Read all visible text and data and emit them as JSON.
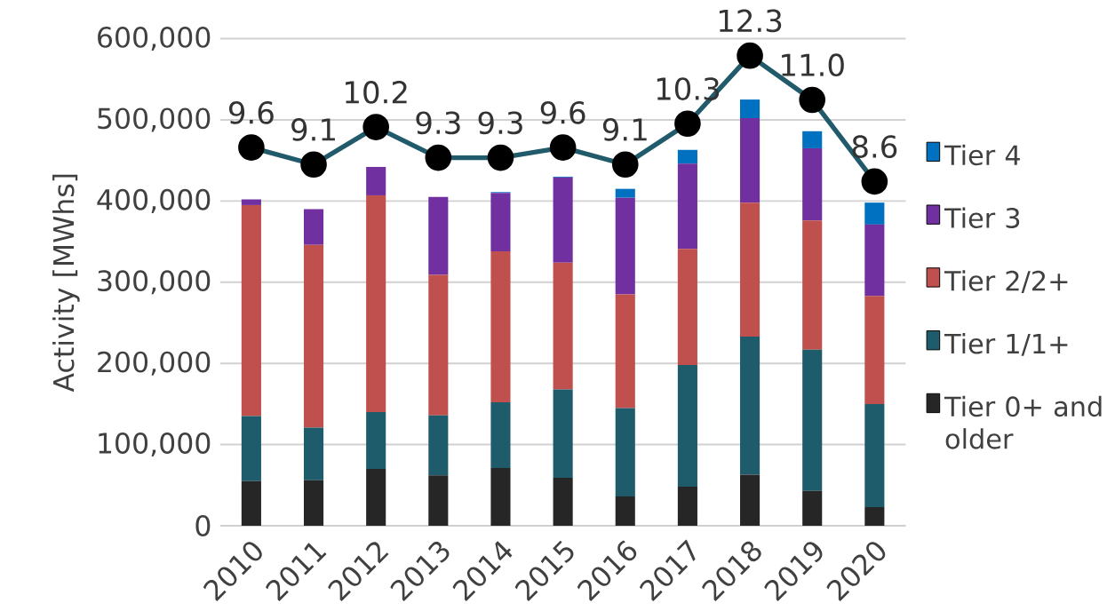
{
  "chart_data": {
    "type": "bar",
    "stacked": true,
    "ylabel": "Activity [MWhs]",
    "categories": [
      "2010",
      "2011",
      "2012",
      "2013",
      "2014",
      "2015",
      "2016",
      "2017",
      "2018",
      "2019",
      "2020"
    ],
    "ylim": [
      0,
      600000
    ],
    "yticks": [
      0,
      {
        "value": 100000,
        "label": "100,000"
      },
      {
        "value": 200000,
        "label": "200,000"
      },
      {
        "value": 300000,
        "label": "300,000"
      },
      {
        "value": 400000,
        "label": "400,000"
      },
      {
        "value": 500000,
        "label": "500,000"
      },
      {
        "value": 600000,
        "label": "600,000"
      }
    ],
    "y2lim": [
      -1.52,
      12.8
    ],
    "grid": "y",
    "legend": "right",
    "series": [
      {
        "name": "Tier 0+ and older",
        "color": "#262626",
        "values": [
          55000,
          56000,
          70000,
          62000,
          71000,
          59000,
          36000,
          48000,
          63000,
          43000,
          23000
        ]
      },
      {
        "name": "Tier 1/1+",
        "color": "#1f5c6b",
        "values": [
          80000,
          65000,
          70000,
          74000,
          81000,
          109000,
          109000,
          150000,
          170000,
          174000,
          127000
        ]
      },
      {
        "name": "Tier 2/2+",
        "color": "#c0504d",
        "values": [
          260000,
          225000,
          267000,
          173000,
          186000,
          156000,
          140000,
          143000,
          165000,
          159000,
          133000
        ]
      },
      {
        "name": "Tier 3",
        "color": "#7030a0",
        "values": [
          7000,
          44000,
          35000,
          96000,
          72000,
          105000,
          119000,
          105000,
          104000,
          89000,
          88000
        ]
      },
      {
        "name": "Tier 4",
        "color": "#0070c0",
        "values": [
          0,
          0,
          0,
          0,
          1000,
          1000,
          11000,
          17000,
          23000,
          21000,
          27000
        ]
      },
      {
        "type": "line",
        "axis": "y2",
        "color": "#215a6a",
        "marker": "circle",
        "values": [
          9.6,
          9.1,
          10.2,
          9.3,
          9.3,
          9.6,
          9.1,
          10.3,
          12.3,
          11.0,
          8.6
        ],
        "value_labels": [
          "9.6",
          "9.1",
          "10.2",
          "9.3",
          "9.3",
          "9.6",
          "9.1",
          "10.3",
          "12.3",
          "11.0",
          "8.6"
        ]
      }
    ]
  }
}
